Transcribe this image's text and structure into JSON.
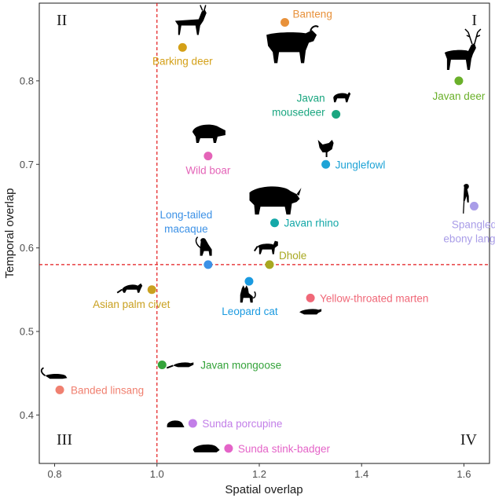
{
  "chart_data": {
    "type": "scatter",
    "xlabel": "Spatial overlap",
    "ylabel": "Temporal overlap",
    "xlim": [
      0.77,
      1.65
    ],
    "ylim": [
      0.342,
      0.893
    ],
    "x_ticks": [
      "0.8",
      "1.0",
      "1.2",
      "1.4",
      "1.6"
    ],
    "y_ticks": [
      "0.4",
      "0.5",
      "0.6",
      "0.7",
      "0.8"
    ],
    "reference_lines": {
      "x": 1.0,
      "y": 0.58,
      "color": "#e31a1c",
      "style": "dashed"
    },
    "quadrants": [
      {
        "label": "I",
        "corner": "top-right"
      },
      {
        "label": "II",
        "corner": "top-left"
      },
      {
        "label": "III",
        "corner": "bottom-left"
      },
      {
        "label": "IV",
        "corner": "bottom-right"
      }
    ],
    "points": [
      {
        "name": "Banteng",
        "x": 1.25,
        "y": 0.87,
        "color": "#e8913a"
      },
      {
        "name": "Barking deer",
        "x": 1.05,
        "y": 0.84,
        "color": "#d4a017"
      },
      {
        "name": "Javan deer",
        "x": 1.59,
        "y": 0.8,
        "color": "#6ab02a"
      },
      {
        "name": "Javan mousedeer",
        "lines": [
          "Javan",
          "mousedeer"
        ],
        "x": 1.35,
        "y": 0.76,
        "color": "#1aa680"
      },
      {
        "name": "Wild boar",
        "x": 1.1,
        "y": 0.71,
        "color": "#e464b8"
      },
      {
        "name": "Junglefowl",
        "x": 1.33,
        "y": 0.7,
        "color": "#1ea3d6"
      },
      {
        "name": "Javan rhino",
        "x": 1.23,
        "y": 0.63,
        "color": "#14a8a8"
      },
      {
        "name": "Spangled ebony langur",
        "lines": [
          "Spangled",
          "ebony langur"
        ],
        "x": 1.62,
        "y": 0.65,
        "color": "#a99de8"
      },
      {
        "name": "Long-tailed macaque",
        "lines": [
          "Long-tailed",
          "macaque"
        ],
        "x": 1.1,
        "y": 0.58,
        "color": "#3c91e6"
      },
      {
        "name": "Dhole",
        "x": 1.22,
        "y": 0.58,
        "color": "#a8a820"
      },
      {
        "name": "Leopard cat",
        "x": 1.18,
        "y": 0.56,
        "color": "#1a9ae0"
      },
      {
        "name": "Asian palm civet",
        "x": 0.99,
        "y": 0.55,
        "color": "#c9a020"
      },
      {
        "name": "Yellow-throated marten",
        "x": 1.3,
        "y": 0.54,
        "color": "#f06878"
      },
      {
        "name": "Javan mongoose",
        "x": 1.01,
        "y": 0.46,
        "color": "#34a33a"
      },
      {
        "name": "Banded linsang",
        "x": 0.81,
        "y": 0.43,
        "color": "#f08070"
      },
      {
        "name": "Sunda porcupine",
        "x": 1.07,
        "y": 0.39,
        "color": "#c27ee8"
      },
      {
        "name": "Sunda stink-badger",
        "x": 1.14,
        "y": 0.36,
        "color": "#e464c8"
      }
    ],
    "silhouettes": [
      {
        "animal": "barking-deer-icon",
        "x": 1.06,
        "y": 0.87,
        "color": "#000000"
      },
      {
        "animal": "banteng-icon",
        "x": 1.26,
        "y": 0.84,
        "color": "#000000"
      },
      {
        "animal": "javan-deer-icon",
        "x": 1.59,
        "y": 0.83,
        "color": "#000000"
      },
      {
        "animal": "mousedeer-icon",
        "x": 1.36,
        "y": 0.78,
        "color": "#000000"
      },
      {
        "animal": "wild-boar-icon",
        "x": 1.1,
        "y": 0.735,
        "color": "#000000"
      },
      {
        "animal": "junglefowl-icon",
        "x": 1.33,
        "y": 0.72,
        "color": "#000000"
      },
      {
        "animal": "rhino-icon",
        "x": 1.23,
        "y": 0.655,
        "color": "#000000"
      },
      {
        "animal": "langur-icon",
        "x": 1.605,
        "y": 0.66,
        "color": "#000000"
      },
      {
        "animal": "macaque-icon",
        "x": 1.095,
        "y": 0.6,
        "color": "#000000"
      },
      {
        "animal": "dhole-icon",
        "x": 1.215,
        "y": 0.6,
        "color": "#000000"
      },
      {
        "animal": "leopard-cat-icon",
        "x": 1.175,
        "y": 0.542,
        "color": "#000000"
      },
      {
        "animal": "palm-civet-icon",
        "x": 0.95,
        "y": 0.552,
        "color": "#000000"
      },
      {
        "animal": "marten-icon",
        "x": 1.3,
        "y": 0.525,
        "color": "#000000"
      },
      {
        "animal": "mongoose-icon",
        "x": 1.05,
        "y": 0.461,
        "color": "#000000"
      },
      {
        "animal": "linsang-icon",
        "x": 0.8,
        "y": 0.447,
        "color": "#000000"
      },
      {
        "animal": "porcupine-icon",
        "x": 1.035,
        "y": 0.389,
        "color": "#000000"
      },
      {
        "animal": "stink-badger-icon",
        "x": 1.095,
        "y": 0.36,
        "color": "#000000"
      }
    ]
  }
}
